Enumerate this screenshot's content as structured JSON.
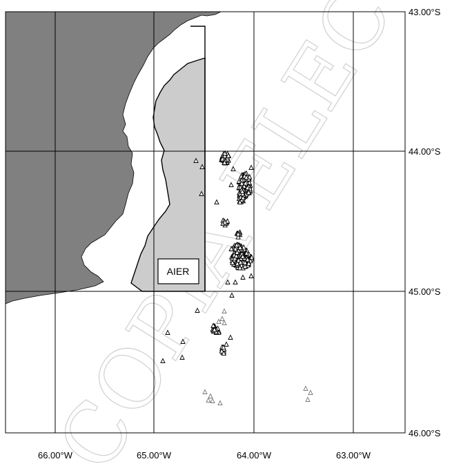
{
  "map": {
    "longitude_labels": [
      "66.00°W",
      "65.00°W",
      "64.00°W",
      "63.00°W"
    ],
    "latitude_labels": [
      "43.00°S",
      "44.00°S",
      "45.00°S",
      "46.00°S"
    ],
    "extent": {
      "lon_min": -66.5,
      "lon_max": -62.5,
      "lat_min": -46.0,
      "lat_max": -43.0
    },
    "area_label": "AIER",
    "watermark_text": "COPIA ELECTRÓNICA",
    "colors": {
      "land": "#808080",
      "aier_area": "#cccccc",
      "points_main": "#000000",
      "points_secondary": "#777777",
      "grid": "#000000"
    },
    "point_symbol": "triangle"
  }
}
